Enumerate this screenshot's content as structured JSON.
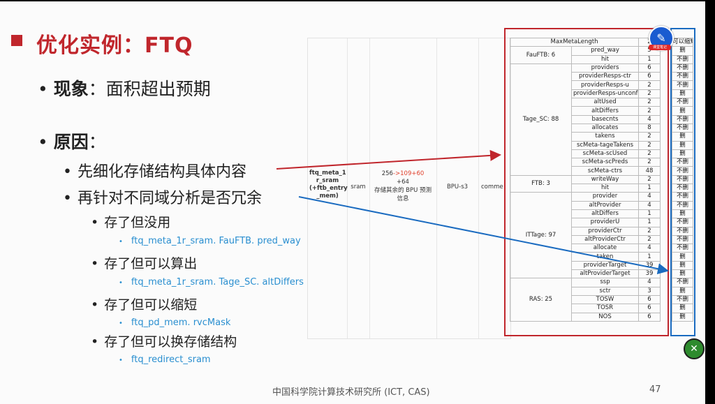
{
  "slide": {
    "title": "优化实例：FTQ",
    "phenomenon_label": "现象",
    "phenomenon_text": "：面积超出预期",
    "reason_label": "原因",
    "reason_suffix": "：",
    "step1": "先细化存储结构具体内容",
    "step2": "再针对不同域分析是否冗余",
    "cases": [
      {
        "label": "存了但没用",
        "example": "ftq_meta_1r_sram. FauFTB. pred_way"
      },
      {
        "label": "存了但可以算出",
        "example": "ftq_meta_1r_sram. Tage_SC. altDiffers"
      },
      {
        "label": "存了但可以缩短",
        "example": "ftq_pd_mem. rvcMask"
      },
      {
        "label": "存了但可以换存储结构",
        "example": "ftq_redirect_sram"
      }
    ],
    "footer": "中国科学院计算技术研究所 (ICT, CAS)",
    "page_number": "47"
  },
  "faint_table": {
    "name_line1": "ftq_meta_1",
    "name_line2": "r_sram",
    "name_line3": "(+ftb_entry",
    "name_line4": "_mem)",
    "type": "sram",
    "width_old": "256",
    "width_new": "->109+60",
    "width_extra": "+64",
    "desc_line1": "存储其余的 BPU 预测",
    "desc_line2": "信息",
    "stage": "BPU-s3",
    "note": "comme"
  },
  "meta_table": {
    "header_label": "MaxMetaLength",
    "header_value": "2",
    "header_action": "可以缩短",
    "groups": [
      {
        "name": "FauFTB: 6",
        "fields": [
          [
            "pred_way",
            "5",
            "删"
          ],
          [
            "hit",
            "1",
            "不删"
          ]
        ]
      },
      {
        "name": "Tage_SC: 88",
        "fields": [
          [
            "providers",
            "6",
            "不删"
          ],
          [
            "providerResps-ctr",
            "6",
            "不删"
          ],
          [
            "providerResps-u",
            "2",
            "不删"
          ],
          [
            "providerResps-unconf",
            "2",
            "删"
          ],
          [
            "altUsed",
            "2",
            "不删"
          ],
          [
            "altDiffers",
            "2",
            "删"
          ],
          [
            "basecnts",
            "4",
            "不删"
          ],
          [
            "allocates",
            "8",
            "不删"
          ],
          [
            "takens",
            "2",
            "删"
          ],
          [
            "scMeta-tageTakens",
            "2",
            "删"
          ],
          [
            "scMeta-scUsed",
            "2",
            "删"
          ],
          [
            "scMeta-scPreds",
            "2",
            "不删"
          ],
          [
            "scMeta-ctrs",
            "48",
            "不删"
          ]
        ]
      },
      {
        "name": "FTB: 3",
        "fields": [
          [
            "writeWay",
            "2",
            "不删"
          ],
          [
            "hit",
            "1",
            "不删"
          ]
        ]
      },
      {
        "name": "ITTage: 97",
        "fields": [
          [
            "provider",
            "4",
            "不删"
          ],
          [
            "altProvider",
            "4",
            "不删"
          ],
          [
            "altDiffers",
            "1",
            "删"
          ],
          [
            "providerU",
            "1",
            "不删"
          ],
          [
            "providerCtr",
            "2",
            "不删"
          ],
          [
            "altProviderCtr",
            "2",
            "不删"
          ],
          [
            "allocate",
            "4",
            "不删"
          ],
          [
            "taken",
            "1",
            "删"
          ],
          [
            "providerTarget",
            "39",
            "删"
          ],
          [
            "altProviderTarget",
            "39",
            "删"
          ]
        ]
      },
      {
        "name": "RAS: 25",
        "fields": [
          [
            "ssp",
            "4",
            "不删"
          ],
          [
            "sctr",
            "3",
            "删"
          ],
          [
            "TOSW",
            "6",
            "不删"
          ],
          [
            "TOSR",
            "6",
            "删"
          ],
          [
            "NOS",
            "6",
            "删"
          ]
        ]
      }
    ]
  },
  "overlay": {
    "badge_icon_glyph": "✎",
    "badge_label": "课堂笔记",
    "close_glyph": "✕"
  },
  "colors": {
    "title_red": "#c0262c",
    "link_blue": "#2a8fd0",
    "box_red": "#c0262c",
    "box_blue": "#1a6bc0"
  }
}
